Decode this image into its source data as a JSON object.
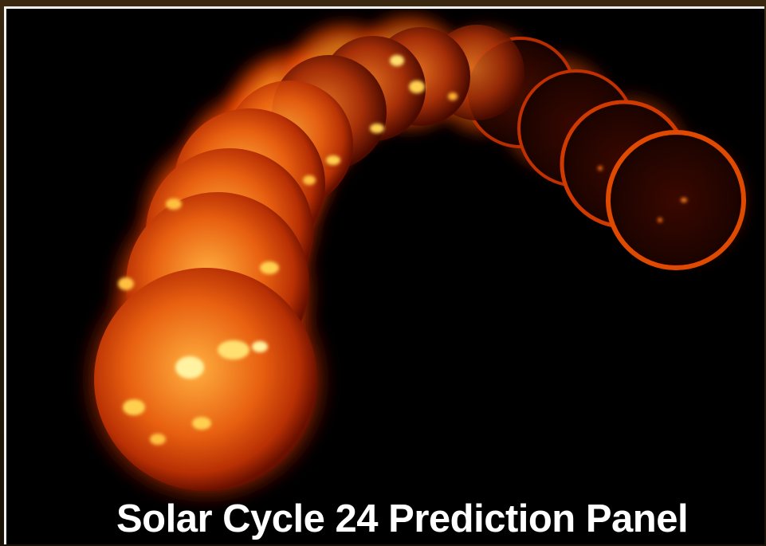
{
  "image": {
    "subject": "sun-sequence",
    "caption": "Solar Cycle 24 Prediction Panel"
  },
  "colors": {
    "background": "#000000",
    "border": "#f2f2f2",
    "caption": "#ffffff",
    "corona_bright": "#ffd24a",
    "corona_mid": "#ff6a10",
    "corona_dark": "#9a1a00"
  }
}
